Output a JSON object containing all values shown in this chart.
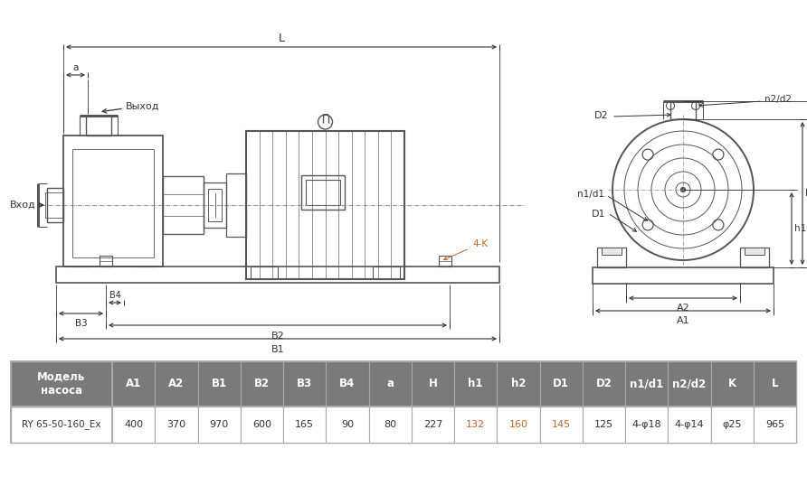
{
  "bg_color": "#ffffff",
  "dc": "#555555",
  "lc": "#333333",
  "orange": "#c8632a",
  "table_header_bg": "#7a7a7a",
  "table_border": "#aaaaaa",
  "columns": [
    "A1",
    "A2",
    "B1",
    "B2",
    "B3",
    "B4",
    "a",
    "H",
    "h1",
    "h2",
    "D1",
    "D2",
    "n1/d1",
    "n2/d2",
    "K",
    "L"
  ],
  "values": [
    "400",
    "370",
    "970",
    "600",
    "165",
    "90",
    "80",
    "227",
    "132",
    "160",
    "145",
    "125",
    "4-φ18",
    "4-φ14",
    "φ25",
    "965"
  ],
  "orange_cols": [
    8,
    9,
    10
  ],
  "model_name": "RY 65-50-160_Ex"
}
